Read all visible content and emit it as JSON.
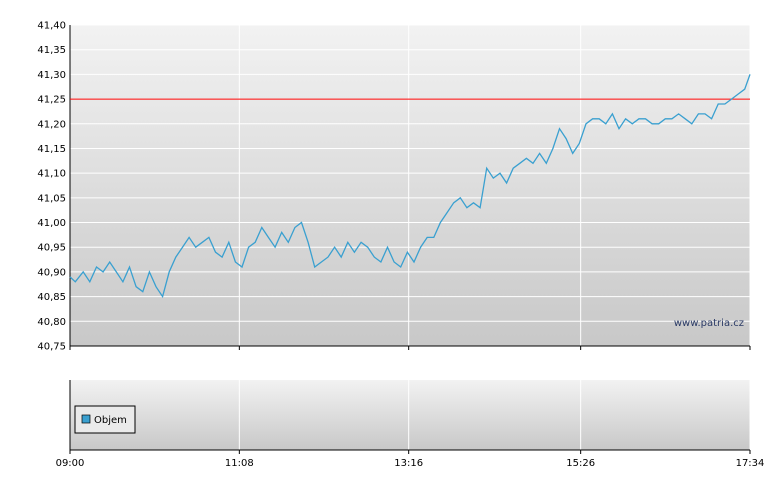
{
  "chart_data": [
    {
      "type": "line",
      "title": "",
      "xlabel": "",
      "ylabel": "",
      "x_ticks": [
        "09:00",
        "11:08",
        "13:16",
        "15:26",
        "17:34"
      ],
      "y_ticks": [
        "41,40",
        "41,35",
        "41,30",
        "41,25",
        "41,20",
        "41,15",
        "41,10",
        "41,05",
        "41,00",
        "40,95",
        "40,90",
        "40,85",
        "40,80",
        "40,75"
      ],
      "ylim": [
        40.75,
        41.4
      ],
      "grid": true,
      "reference_line": {
        "value": 41.25,
        "color": "#ff0000"
      },
      "series": [
        {
          "color": "#3aa0d0",
          "x": [
            "09:00",
            "09:04",
            "09:10",
            "09:15",
            "09:20",
            "09:25",
            "09:30",
            "09:35",
            "09:40",
            "09:45",
            "09:50",
            "09:55",
            "10:00",
            "10:05",
            "10:10",
            "10:15",
            "10:20",
            "10:25",
            "10:30",
            "10:35",
            "10:40",
            "10:45",
            "10:50",
            "10:55",
            "11:00",
            "11:05",
            "11:10",
            "11:15",
            "11:20",
            "11:25",
            "11:30",
            "11:35",
            "11:40",
            "11:45",
            "11:50",
            "11:55",
            "12:00",
            "12:05",
            "12:10",
            "12:15",
            "12:20",
            "12:25",
            "12:30",
            "12:35",
            "12:40",
            "12:45",
            "12:50",
            "12:55",
            "13:00",
            "13:05",
            "13:10",
            "13:15",
            "13:20",
            "13:25",
            "13:30",
            "13:35",
            "13:40",
            "13:45",
            "13:50",
            "13:55",
            "14:00",
            "14:05",
            "14:10",
            "14:15",
            "14:20",
            "14:25",
            "14:30",
            "14:35",
            "14:40",
            "14:45",
            "14:50",
            "14:55",
            "15:00",
            "15:05",
            "15:10",
            "15:15",
            "15:20",
            "15:25",
            "15:30",
            "15:35",
            "15:40",
            "15:45",
            "15:50",
            "15:55",
            "16:00",
            "16:05",
            "16:10",
            "16:15",
            "16:20",
            "16:25",
            "16:30",
            "16:35",
            "16:40",
            "16:45",
            "16:50",
            "16:55",
            "17:00",
            "17:05",
            "17:10",
            "17:15",
            "17:20",
            "17:25",
            "17:30",
            "17:34"
          ],
          "values": [
            40.89,
            40.88,
            40.9,
            40.88,
            40.91,
            40.9,
            40.92,
            40.9,
            40.88,
            40.91,
            40.87,
            40.86,
            40.9,
            40.87,
            40.85,
            40.9,
            40.93,
            40.95,
            40.97,
            40.95,
            40.96,
            40.97,
            40.94,
            40.93,
            40.96,
            40.92,
            40.91,
            40.95,
            40.96,
            40.99,
            40.97,
            40.95,
            40.98,
            40.96,
            40.99,
            41.0,
            40.96,
            40.91,
            40.92,
            40.93,
            40.95,
            40.93,
            40.96,
            40.94,
            40.96,
            40.95,
            40.93,
            40.92,
            40.95,
            40.92,
            40.91,
            40.94,
            40.92,
            40.95,
            40.97,
            40.97,
            41.0,
            41.02,
            41.04,
            41.05,
            41.03,
            41.04,
            41.03,
            41.11,
            41.09,
            41.1,
            41.08,
            41.11,
            41.12,
            41.13,
            41.12,
            41.14,
            41.12,
            41.15,
            41.19,
            41.17,
            41.14,
            41.16,
            41.2,
            41.21,
            41.21,
            41.2,
            41.22,
            41.19,
            41.21,
            41.2,
            41.21,
            41.21,
            41.2,
            41.2,
            41.21,
            41.21,
            41.22,
            41.21,
            41.2,
            41.22,
            41.22,
            41.21,
            41.24,
            41.24,
            41.25,
            41.26,
            41.27,
            41.3
          ]
        }
      ],
      "watermark": "www.patria.cz"
    },
    {
      "type": "bar",
      "title": "",
      "legend": [
        "Objem"
      ],
      "legend_color": "#3aa0d0",
      "x_ticks": [
        "09:00",
        "11:08",
        "13:16",
        "15:26",
        "17:34"
      ],
      "series": [
        {
          "name": "Objem",
          "values": []
        }
      ]
    }
  ]
}
